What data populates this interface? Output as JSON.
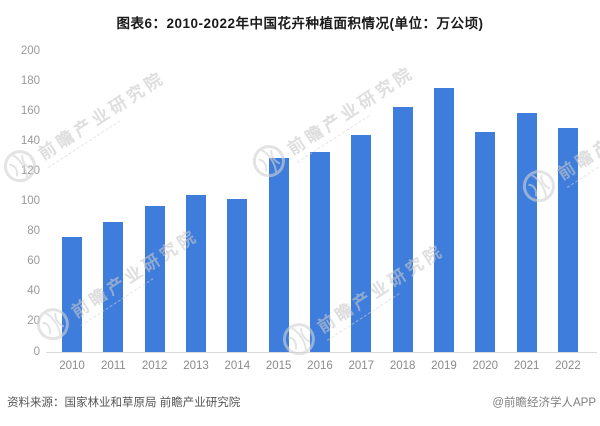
{
  "title": "图表6：2010-2022年中国花卉种植面积情况(单位：万公顷)",
  "chart_data": {
    "type": "bar",
    "title": "图表6：2010-2022年中国花卉种植面积情况(单位：万公顷)",
    "categories": [
      "2010",
      "2011",
      "2012",
      "2013",
      "2014",
      "2015",
      "2016",
      "2017",
      "2018",
      "2019",
      "2020",
      "2021",
      "2022"
    ],
    "values": [
      76.5,
      86.5,
      97,
      104.5,
      101.5,
      129,
      133,
      144.5,
      163,
      175.5,
      146.5,
      158.5,
      149
    ],
    "unit": "万公顷",
    "xlabel": "",
    "ylabel": "",
    "ylim": [
      0,
      200
    ],
    "yticks": [
      0,
      20,
      40,
      60,
      80,
      100,
      120,
      140,
      160,
      180,
      200
    ],
    "grid": false,
    "legend": null,
    "bar_color": "#3E7DDC"
  },
  "watermark": {
    "text": "前瞻产业研究院",
    "icon": "globe-icon"
  },
  "footer": {
    "source": "资料来源：国家林业和草原局 前瞻产业研究院",
    "brand": "@前瞻经济学人APP"
  },
  "colors": {
    "bar": "#3E7DDC",
    "title_text": "#1a1a1a",
    "yaxis_text": "#9a9a9a",
    "xaxis_text": "#8a8a8a",
    "baseline": "#d9d9d9",
    "footer_source": "#555555",
    "footer_brand": "#7f7f7f",
    "watermark": "#c9c9c9",
    "background": "#ffffff"
  }
}
